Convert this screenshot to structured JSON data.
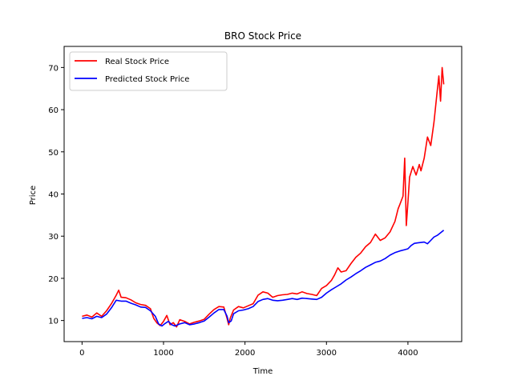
{
  "chart_data": {
    "type": "line",
    "title": "BRO Stock Price",
    "xlabel": "Time",
    "ylabel": "Price",
    "xlim": [
      -220,
      4660
    ],
    "ylim": [
      5,
      75
    ],
    "x_ticks": [
      0,
      1000,
      2000,
      3000,
      4000
    ],
    "x_tick_labels": [
      "0",
      "1000",
      "2000",
      "3000",
      "4000"
    ],
    "y_ticks": [
      10,
      20,
      30,
      40,
      50,
      60,
      70
    ],
    "y_tick_labels": [
      "10",
      "20",
      "30",
      "40",
      "50",
      "60",
      "70"
    ],
    "grid": false,
    "legend_position": "top-left",
    "series": [
      {
        "name": "Real Stock Price",
        "color": "#ff0000",
        "x": [
          0,
          60,
          120,
          180,
          240,
          300,
          360,
          420,
          450,
          480,
          540,
          600,
          660,
          720,
          780,
          840,
          880,
          920,
          960,
          1000,
          1040,
          1080,
          1120,
          1160,
          1200,
          1260,
          1320,
          1380,
          1440,
          1500,
          1560,
          1620,
          1680,
          1740,
          1780,
          1800,
          1820,
          1860,
          1920,
          1980,
          2040,
          2100,
          2160,
          2220,
          2280,
          2340,
          2400,
          2460,
          2520,
          2580,
          2640,
          2700,
          2760,
          2820,
          2880,
          2940,
          3000,
          3060,
          3100,
          3140,
          3180,
          3240,
          3300,
          3360,
          3420,
          3480,
          3540,
          3600,
          3660,
          3720,
          3780,
          3840,
          3880,
          3900,
          3940,
          3960,
          3980,
          4000,
          4020,
          4060,
          4100,
          4140,
          4160,
          4200,
          4240,
          4280,
          4320,
          4360,
          4380,
          4400,
          4420,
          4440
        ],
        "y": [
          11.0,
          11.3,
          10.8,
          11.8,
          11.0,
          12.3,
          14.0,
          16.0,
          17.2,
          15.5,
          15.4,
          14.9,
          14.2,
          13.8,
          13.6,
          12.8,
          10.5,
          9.4,
          8.8,
          9.8,
          11.2,
          9.0,
          9.5,
          8.5,
          10.2,
          9.8,
          9.2,
          9.6,
          9.9,
          10.3,
          11.5,
          12.6,
          13.3,
          13.2,
          10.5,
          9.0,
          10.6,
          12.5,
          13.3,
          13.0,
          13.5,
          14.0,
          16.0,
          16.8,
          16.5,
          15.5,
          15.9,
          16.1,
          16.2,
          16.5,
          16.3,
          16.8,
          16.4,
          16.2,
          15.9,
          17.6,
          18.3,
          19.5,
          20.8,
          22.5,
          21.5,
          21.8,
          23.5,
          25.0,
          26.0,
          27.5,
          28.5,
          30.5,
          29.0,
          29.6,
          31.0,
          33.5,
          36.5,
          37.5,
          39.5,
          48.5,
          32.5,
          38.0,
          44.0,
          46.5,
          44.5,
          47.0,
          45.5,
          48.5,
          53.5,
          51.5,
          57.0,
          64.5,
          68.0,
          62.0,
          70.0,
          66.0
        ]
      },
      {
        "name": "Predicted Stock Price",
        "color": "#0000ff",
        "x": [
          0,
          60,
          120,
          180,
          240,
          300,
          360,
          420,
          480,
          540,
          600,
          660,
          720,
          780,
          840,
          900,
          940,
          980,
          1020,
          1060,
          1100,
          1140,
          1200,
          1260,
          1320,
          1380,
          1440,
          1500,
          1560,
          1620,
          1680,
          1740,
          1780,
          1800,
          1830,
          1860,
          1920,
          1980,
          2040,
          2100,
          2160,
          2220,
          2280,
          2340,
          2400,
          2460,
          2520,
          2580,
          2640,
          2700,
          2760,
          2820,
          2880,
          2940,
          3000,
          3060,
          3120,
          3180,
          3240,
          3300,
          3360,
          3420,
          3480,
          3540,
          3600,
          3660,
          3720,
          3780,
          3840,
          3900,
          3960,
          4000,
          4040,
          4080,
          4120,
          4160,
          4200,
          4240,
          4280,
          4320,
          4360,
          4400,
          4440
        ],
        "y": [
          10.5,
          10.7,
          10.4,
          11.0,
          10.7,
          11.5,
          13.0,
          14.8,
          14.6,
          14.6,
          14.1,
          13.7,
          13.2,
          13.1,
          12.3,
          11.0,
          9.2,
          8.7,
          9.3,
          9.8,
          9.0,
          8.7,
          9.2,
          9.5,
          9.0,
          9.2,
          9.5,
          9.9,
          10.8,
          11.8,
          12.6,
          12.6,
          11.0,
          9.5,
          9.9,
          11.6,
          12.3,
          12.5,
          12.8,
          13.3,
          14.5,
          15.0,
          15.2,
          14.8,
          14.7,
          14.8,
          15.0,
          15.2,
          15.0,
          15.3,
          15.2,
          15.1,
          15.0,
          15.5,
          16.5,
          17.3,
          18.0,
          18.7,
          19.6,
          20.3,
          21.1,
          21.8,
          22.6,
          23.2,
          23.8,
          24.1,
          24.7,
          25.5,
          26.1,
          26.5,
          26.8,
          27.0,
          27.8,
          28.3,
          28.4,
          28.5,
          28.6,
          28.2,
          29.0,
          29.8,
          30.2,
          30.8,
          31.4
        ]
      }
    ]
  }
}
